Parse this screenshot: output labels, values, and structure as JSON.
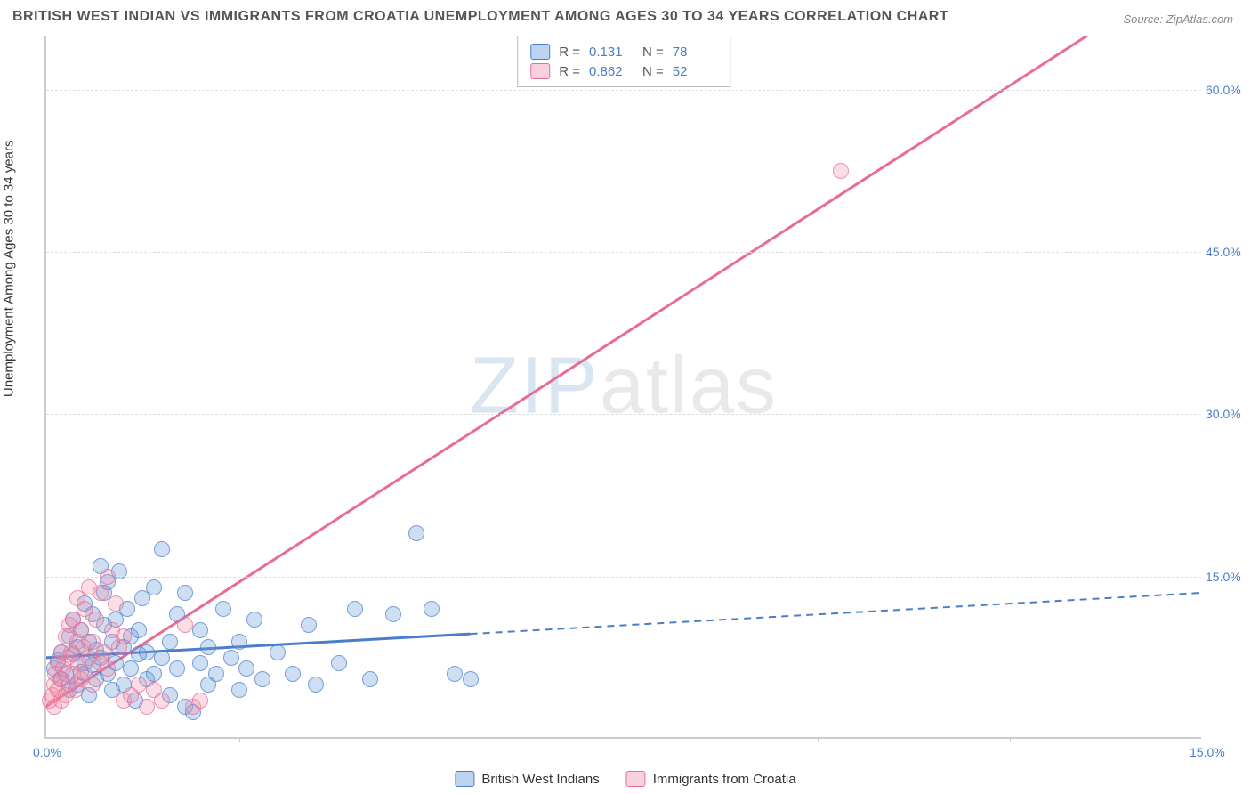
{
  "title": "BRITISH WEST INDIAN VS IMMIGRANTS FROM CROATIA UNEMPLOYMENT AMONG AGES 30 TO 34 YEARS CORRELATION CHART",
  "source": "Source: ZipAtlas.com",
  "ylabel": "Unemployment Among Ages 30 to 34 years",
  "watermark_a": "ZIP",
  "watermark_b": "atlas",
  "colors": {
    "series0_fill": "rgba(109,160,221,0.45)",
    "series0_stroke": "#4a7ec9",
    "series1_fill": "rgba(240,140,170,0.40)",
    "series1_stroke": "#e86d94",
    "axis": "#cccccc",
    "grid": "#dddddd",
    "tick_text": "#4a7ec9",
    "title_text": "#555555",
    "watermark_a_color": "#d9e6f2",
    "watermark_b_color": "#e9e9e9"
  },
  "xlim": [
    0,
    15
  ],
  "ylim": [
    0,
    65
  ],
  "yticks": [
    {
      "v": 15,
      "label": "15.0%"
    },
    {
      "v": 30,
      "label": "30.0%"
    },
    {
      "v": 45,
      "label": "45.0%"
    },
    {
      "v": 60,
      "label": "60.0%"
    }
  ],
  "xticks_major": [
    {
      "v": 0,
      "label": "0.0%"
    },
    {
      "v": 15,
      "label": "15.0%"
    }
  ],
  "xticks_minor": [
    2.5,
    5.0,
    7.5,
    10.0,
    12.5
  ],
  "series": [
    {
      "name": "British West Indians",
      "class": "s0",
      "R": "0.131",
      "N": "78",
      "trend": {
        "x0": 0,
        "y0": 7.5,
        "x1": 15,
        "y1": 13.5,
        "solid_until_x": 5.5,
        "color": "#4a7ec9"
      },
      "points": [
        [
          0.1,
          6.5
        ],
        [
          0.15,
          7.2
        ],
        [
          0.2,
          5.5
        ],
        [
          0.2,
          8.0
        ],
        [
          0.25,
          6.0
        ],
        [
          0.3,
          9.5
        ],
        [
          0.3,
          4.5
        ],
        [
          0.35,
          7.8
        ],
        [
          0.35,
          11.0
        ],
        [
          0.4,
          5.0
        ],
        [
          0.4,
          8.5
        ],
        [
          0.45,
          6.2
        ],
        [
          0.45,
          10.0
        ],
        [
          0.5,
          7.0
        ],
        [
          0.5,
          12.5
        ],
        [
          0.55,
          4.0
        ],
        [
          0.55,
          9.0
        ],
        [
          0.6,
          6.8
        ],
        [
          0.6,
          11.5
        ],
        [
          0.65,
          5.5
        ],
        [
          0.65,
          8.2
        ],
        [
          0.7,
          16.0
        ],
        [
          0.7,
          7.5
        ],
        [
          0.75,
          10.5
        ],
        [
          0.75,
          13.5
        ],
        [
          0.8,
          6.0
        ],
        [
          0.8,
          14.5
        ],
        [
          0.85,
          9.0
        ],
        [
          0.85,
          4.5
        ],
        [
          0.9,
          11.0
        ],
        [
          0.9,
          7.0
        ],
        [
          0.95,
          15.5
        ],
        [
          1.0,
          8.5
        ],
        [
          1.0,
          5.0
        ],
        [
          1.05,
          12.0
        ],
        [
          1.1,
          6.5
        ],
        [
          1.1,
          9.5
        ],
        [
          1.15,
          3.5
        ],
        [
          1.2,
          7.8
        ],
        [
          1.2,
          10.0
        ],
        [
          1.25,
          13.0
        ],
        [
          1.3,
          5.5
        ],
        [
          1.3,
          8.0
        ],
        [
          1.4,
          14.0
        ],
        [
          1.4,
          6.0
        ],
        [
          1.5,
          17.5
        ],
        [
          1.5,
          7.5
        ],
        [
          1.6,
          9.0
        ],
        [
          1.6,
          4.0
        ],
        [
          1.7,
          11.5
        ],
        [
          1.7,
          6.5
        ],
        [
          1.8,
          13.5
        ],
        [
          1.8,
          3.0
        ],
        [
          1.9,
          2.5
        ],
        [
          2.0,
          7.0
        ],
        [
          2.0,
          10.0
        ],
        [
          2.1,
          5.0
        ],
        [
          2.1,
          8.5
        ],
        [
          2.2,
          6.0
        ],
        [
          2.3,
          12.0
        ],
        [
          2.4,
          7.5
        ],
        [
          2.5,
          9.0
        ],
        [
          2.5,
          4.5
        ],
        [
          2.6,
          6.5
        ],
        [
          2.7,
          11.0
        ],
        [
          2.8,
          5.5
        ],
        [
          3.0,
          8.0
        ],
        [
          3.2,
          6.0
        ],
        [
          3.4,
          10.5
        ],
        [
          3.5,
          5.0
        ],
        [
          3.8,
          7.0
        ],
        [
          4.0,
          12.0
        ],
        [
          4.2,
          5.5
        ],
        [
          4.5,
          11.5
        ],
        [
          4.8,
          19.0
        ],
        [
          5.0,
          12.0
        ],
        [
          5.3,
          6.0
        ],
        [
          5.5,
          5.5
        ]
      ]
    },
    {
      "name": "Immigrants from Croatia",
      "class": "s1",
      "R": "0.862",
      "N": "52",
      "trend": {
        "x0": 0,
        "y0": 3.0,
        "x1": 13.5,
        "y1": 65.0,
        "solid_until_x": 13.5,
        "color": "#e86d94"
      },
      "points": [
        [
          0.05,
          3.5
        ],
        [
          0.08,
          4.0
        ],
        [
          0.1,
          5.0
        ],
        [
          0.1,
          3.0
        ],
        [
          0.12,
          6.0
        ],
        [
          0.15,
          4.5
        ],
        [
          0.15,
          7.0
        ],
        [
          0.18,
          5.5
        ],
        [
          0.2,
          3.5
        ],
        [
          0.2,
          8.0
        ],
        [
          0.22,
          6.5
        ],
        [
          0.25,
          4.0
        ],
        [
          0.25,
          9.5
        ],
        [
          0.28,
          7.5
        ],
        [
          0.3,
          5.0
        ],
        [
          0.3,
          10.5
        ],
        [
          0.32,
          8.0
        ],
        [
          0.35,
          6.0
        ],
        [
          0.35,
          11.0
        ],
        [
          0.38,
          4.5
        ],
        [
          0.4,
          9.0
        ],
        [
          0.4,
          13.0
        ],
        [
          0.42,
          7.0
        ],
        [
          0.45,
          5.5
        ],
        [
          0.45,
          10.0
        ],
        [
          0.48,
          8.5
        ],
        [
          0.5,
          6.0
        ],
        [
          0.5,
          12.0
        ],
        [
          0.55,
          7.5
        ],
        [
          0.55,
          14.0
        ],
        [
          0.6,
          9.0
        ],
        [
          0.6,
          5.0
        ],
        [
          0.65,
          11.0
        ],
        [
          0.7,
          7.0
        ],
        [
          0.7,
          13.5
        ],
        [
          0.75,
          8.0
        ],
        [
          0.8,
          15.0
        ],
        [
          0.8,
          6.5
        ],
        [
          0.85,
          10.0
        ],
        [
          0.9,
          12.5
        ],
        [
          0.95,
          8.5
        ],
        [
          1.0,
          9.5
        ],
        [
          1.0,
          3.5
        ],
        [
          1.1,
          4.0
        ],
        [
          1.2,
          5.0
        ],
        [
          1.3,
          3.0
        ],
        [
          1.4,
          4.5
        ],
        [
          1.5,
          3.5
        ],
        [
          1.8,
          10.5
        ],
        [
          1.9,
          3.0
        ],
        [
          2.0,
          3.5
        ],
        [
          10.3,
          52.5
        ]
      ]
    }
  ],
  "legend_top_labels": {
    "R": "R =",
    "N": "N ="
  },
  "legend_bottom": [
    "British West Indians",
    "Immigrants from Croatia"
  ]
}
